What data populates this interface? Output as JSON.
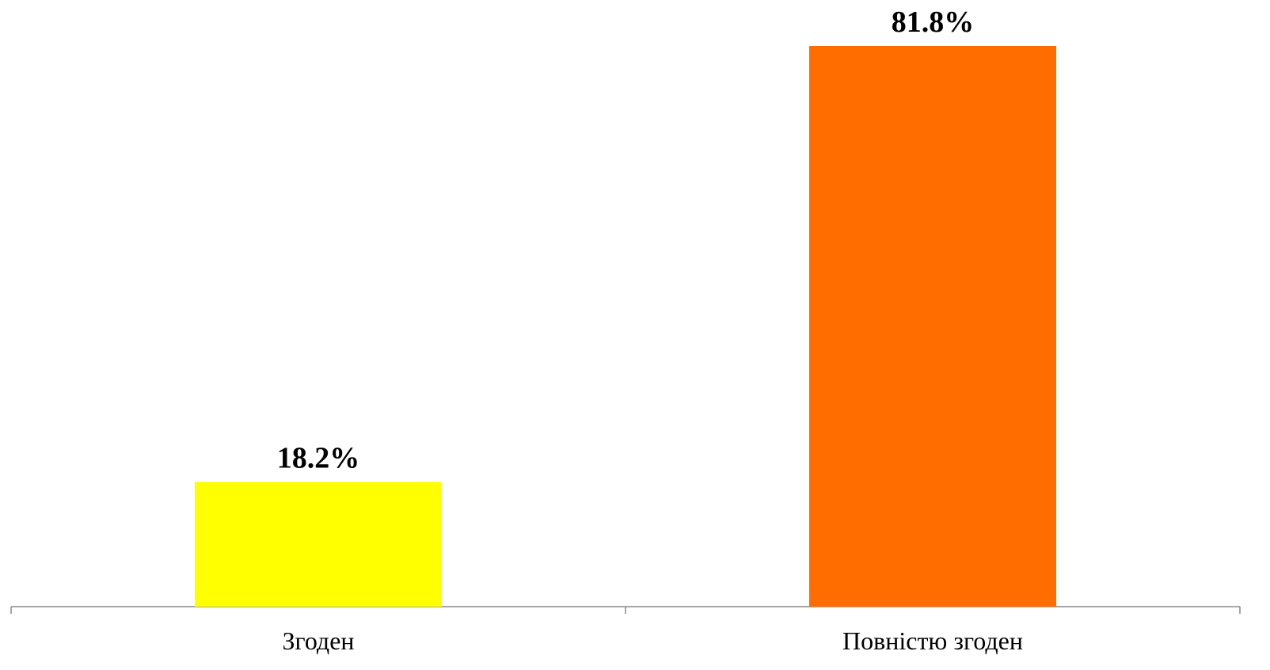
{
  "chart_data": {
    "type": "bar",
    "categories": [
      "Згоден",
      "Повністю згоден"
    ],
    "values": [
      18.2,
      81.8
    ],
    "value_labels": [
      "18.2%",
      "81.8%"
    ],
    "colors": [
      "#ffff00",
      "#ff6d00"
    ]
  }
}
